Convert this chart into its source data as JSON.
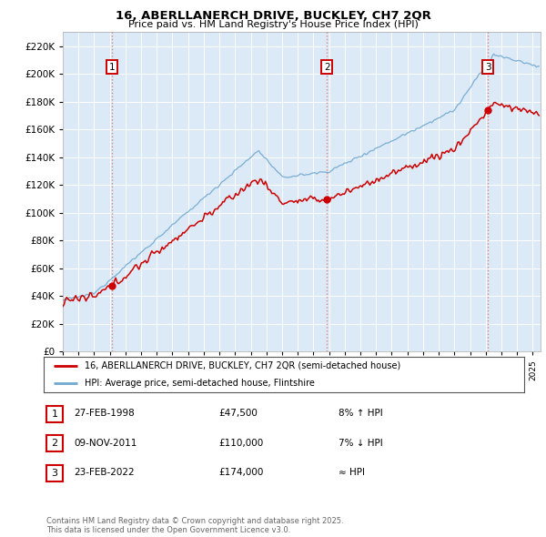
{
  "title": "16, ABERLLANERCH DRIVE, BUCKLEY, CH7 2QR",
  "subtitle": "Price paid vs. HM Land Registry's House Price Index (HPI)",
  "plot_bg_color": "#dce9f7",
  "ylim": [
    0,
    230000
  ],
  "yticks": [
    0,
    20000,
    40000,
    60000,
    80000,
    100000,
    120000,
    140000,
    160000,
    180000,
    200000,
    220000
  ],
  "xlim_start": 1995.0,
  "xlim_end": 2025.5,
  "xticks": [
    1995,
    1996,
    1997,
    1998,
    1999,
    2000,
    2001,
    2002,
    2003,
    2004,
    2005,
    2006,
    2007,
    2008,
    2009,
    2010,
    2011,
    2012,
    2013,
    2014,
    2015,
    2016,
    2017,
    2018,
    2019,
    2020,
    2021,
    2022,
    2023,
    2024,
    2025
  ],
  "red_color": "#cc0000",
  "blue_color": "#6fa8d0",
  "sale_dates": [
    1998.15,
    2011.86,
    2022.15
  ],
  "sale_prices": [
    47500,
    110000,
    174000
  ],
  "sale_labels": [
    "1",
    "2",
    "3"
  ],
  "legend_red": "16, ABERLLANERCH DRIVE, BUCKLEY, CH7 2QR (semi-detached house)",
  "legend_blue": "HPI: Average price, semi-detached house, Flintshire",
  "table_rows": [
    {
      "label": "1",
      "date": "27-FEB-1998",
      "price": "£47,500",
      "hpi": "8% ↑ HPI"
    },
    {
      "label": "2",
      "date": "09-NOV-2011",
      "price": "£110,000",
      "hpi": "7% ↓ HPI"
    },
    {
      "label": "3",
      "date": "23-FEB-2022",
      "price": "£174,000",
      "hpi": "≈ HPI"
    }
  ],
  "footer": "Contains HM Land Registry data © Crown copyright and database right 2025.\nThis data is licensed under the Open Government Licence v3.0."
}
